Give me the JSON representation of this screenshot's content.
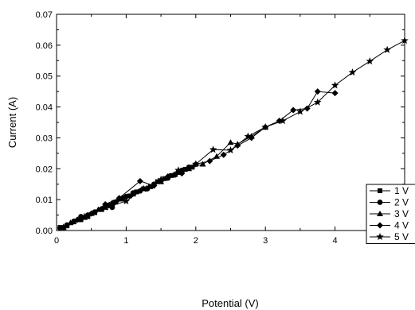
{
  "chart_data": {
    "type": "line",
    "xlabel": "Potential (V)",
    "ylabel": "Current (A)",
    "xlim": [
      0,
      5
    ],
    "ylim": [
      0,
      0.07
    ],
    "x_ticks": [
      "0",
      "1",
      "2",
      "3",
      "4",
      "5"
    ],
    "y_ticks": [
      "0.00",
      "0.01",
      "0.02",
      "0.03",
      "0.04",
      "0.05",
      "0.06",
      "0.07"
    ],
    "grid": false,
    "legend_position": "bottom-right",
    "series": [
      {
        "name": "1 V",
        "marker": "square",
        "points": [
          [
            0.05,
            0.001
          ],
          [
            0.15,
            0.0015
          ],
          [
            0.25,
            0.0028
          ],
          [
            0.35,
            0.0035
          ],
          [
            0.45,
            0.0045
          ],
          [
            0.55,
            0.0058
          ],
          [
            0.65,
            0.0068
          ],
          [
            0.75,
            0.0082
          ],
          [
            0.85,
            0.0092
          ],
          [
            0.95,
            0.0102
          ],
          [
            1.05,
            0.0112
          ],
          [
            1.15,
            0.0125
          ],
          [
            1.25,
            0.0135
          ],
          [
            1.35,
            0.0142
          ],
          [
            1.45,
            0.0158
          ],
          [
            1.55,
            0.0168
          ],
          [
            1.65,
            0.0178
          ],
          [
            1.75,
            0.0188
          ],
          [
            1.85,
            0.0198
          ],
          [
            1.95,
            0.0205
          ]
        ]
      },
      {
        "name": "2 V",
        "marker": "circle",
        "points": [
          [
            0.05,
            0.0008
          ],
          [
            0.15,
            0.0018
          ],
          [
            0.25,
            0.003
          ],
          [
            0.35,
            0.0045
          ],
          [
            0.45,
            0.005
          ],
          [
            0.55,
            0.006
          ],
          [
            0.65,
            0.007
          ],
          [
            0.8,
            0.0075
          ],
          [
            0.95,
            0.0105
          ],
          [
            1.0,
            0.011
          ],
          [
            1.1,
            0.0122
          ],
          [
            1.2,
            0.0128
          ],
          [
            1.3,
            0.0135
          ],
          [
            1.4,
            0.015
          ],
          [
            1.5,
            0.016
          ],
          [
            1.6,
            0.017
          ],
          [
            1.7,
            0.018
          ],
          [
            1.8,
            0.0195
          ],
          [
            1.9,
            0.0205
          ]
        ]
      },
      {
        "name": "3 V",
        "marker": "triangle",
        "points": [
          [
            0.1,
            0.001
          ],
          [
            0.2,
            0.0025
          ],
          [
            0.3,
            0.0035
          ],
          [
            0.4,
            0.0042
          ],
          [
            0.5,
            0.0055
          ],
          [
            0.6,
            0.0068
          ],
          [
            0.7,
            0.0075
          ],
          [
            0.8,
            0.009
          ],
          [
            0.9,
            0.0102
          ],
          [
            1.1,
            0.0118
          ],
          [
            1.3,
            0.0138
          ],
          [
            1.5,
            0.0158
          ],
          [
            1.7,
            0.0182
          ],
          [
            1.9,
            0.02
          ],
          [
            2.1,
            0.0215
          ],
          [
            2.3,
            0.024
          ],
          [
            2.5,
            0.0285
          ],
          [
            2.6,
            0.028
          ],
          [
            2.8,
            0.0305
          ],
          [
            3.0,
            0.0335
          ]
        ]
      },
      {
        "name": "4 V",
        "marker": "diamond",
        "points": [
          [
            0.1,
            0.001
          ],
          [
            0.3,
            0.0035
          ],
          [
            0.5,
            0.0055
          ],
          [
            0.7,
            0.0085
          ],
          [
            0.9,
            0.0105
          ],
          [
            1.2,
            0.016
          ],
          [
            1.4,
            0.0145
          ],
          [
            1.6,
            0.0175
          ],
          [
            1.8,
            0.0185
          ],
          [
            2.0,
            0.0215
          ],
          [
            2.2,
            0.0225
          ],
          [
            2.4,
            0.0245
          ],
          [
            2.6,
            0.0275
          ],
          [
            2.8,
            0.03
          ],
          [
            3.0,
            0.0335
          ],
          [
            3.2,
            0.0355
          ],
          [
            3.4,
            0.039
          ],
          [
            3.6,
            0.0395
          ],
          [
            3.75,
            0.045
          ],
          [
            4.0,
            0.0445
          ]
        ]
      },
      {
        "name": "5 V",
        "marker": "star",
        "points": [
          [
            0.1,
            0.001
          ],
          [
            0.4,
            0.0045
          ],
          [
            0.7,
            0.0075
          ],
          [
            1.0,
            0.0095
          ],
          [
            1.25,
            0.0135
          ],
          [
            1.5,
            0.0165
          ],
          [
            1.75,
            0.0195
          ],
          [
            2.0,
            0.0215
          ],
          [
            2.25,
            0.0262
          ],
          [
            2.5,
            0.026
          ],
          [
            2.75,
            0.0305
          ],
          [
            3.0,
            0.0335
          ],
          [
            3.25,
            0.0355
          ],
          [
            3.5,
            0.0385
          ],
          [
            3.75,
            0.0415
          ],
          [
            4.0,
            0.047
          ],
          [
            4.25,
            0.0512
          ],
          [
            4.5,
            0.0548
          ],
          [
            4.75,
            0.0585
          ],
          [
            5.0,
            0.0615
          ]
        ]
      }
    ]
  }
}
